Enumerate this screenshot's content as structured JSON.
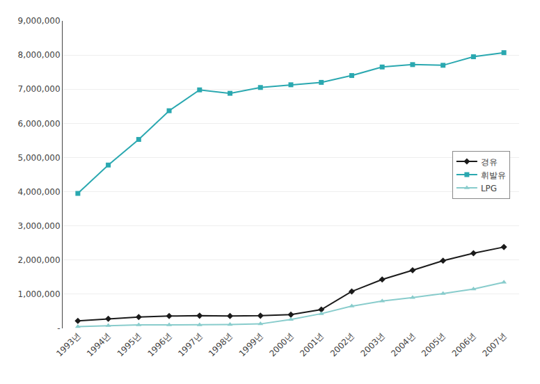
{
  "chart_data": {
    "type": "line",
    "categories": [
      "1993년",
      "1994년",
      "1995년",
      "1996년",
      "1997년",
      "1998년",
      "1999년",
      "2000년",
      "2001년",
      "2002년",
      "2003년",
      "2004년",
      "2005년",
      "2006년",
      "2007년"
    ],
    "series": [
      {
        "name": "경유",
        "color": "#1a1a1a",
        "marker": "diamond",
        "values": [
          220000,
          280000,
          330000,
          360000,
          370000,
          360000,
          370000,
          400000,
          550000,
          1080000,
          1430000,
          1700000,
          1980000,
          2200000,
          2380000
        ]
      },
      {
        "name": "휘발유",
        "color": "#2aa8b0",
        "marker": "square",
        "values": [
          3950000,
          4780000,
          5530000,
          6370000,
          6980000,
          6880000,
          7050000,
          7130000,
          7200000,
          7400000,
          7650000,
          7720000,
          7700000,
          7950000,
          8070000
        ]
      },
      {
        "name": "LPG",
        "color": "#88cccc",
        "marker": "triangle-up",
        "values": [
          50000,
          80000,
          100000,
          100000,
          100000,
          110000,
          130000,
          260000,
          430000,
          650000,
          800000,
          900000,
          1020000,
          1150000,
          1350000
        ]
      }
    ],
    "ylim": [
      0,
      9000000
    ],
    "yticks": [
      {
        "value": 0,
        "label": "-"
      },
      {
        "value": 1000000,
        "label": "1,000,000"
      },
      {
        "value": 2000000,
        "label": "2,000,000"
      },
      {
        "value": 3000000,
        "label": "3,000,000"
      },
      {
        "value": 4000000,
        "label": "4,000,000"
      },
      {
        "value": 5000000,
        "label": "5,000,000"
      },
      {
        "value": 6000000,
        "label": "6,000,000"
      },
      {
        "value": 7000000,
        "label": "7,000,000"
      },
      {
        "value": 8000000,
        "label": "8,000,000"
      },
      {
        "value": 9000000,
        "label": "9,000,000"
      }
    ],
    "grid": true,
    "legend": "center right"
  }
}
